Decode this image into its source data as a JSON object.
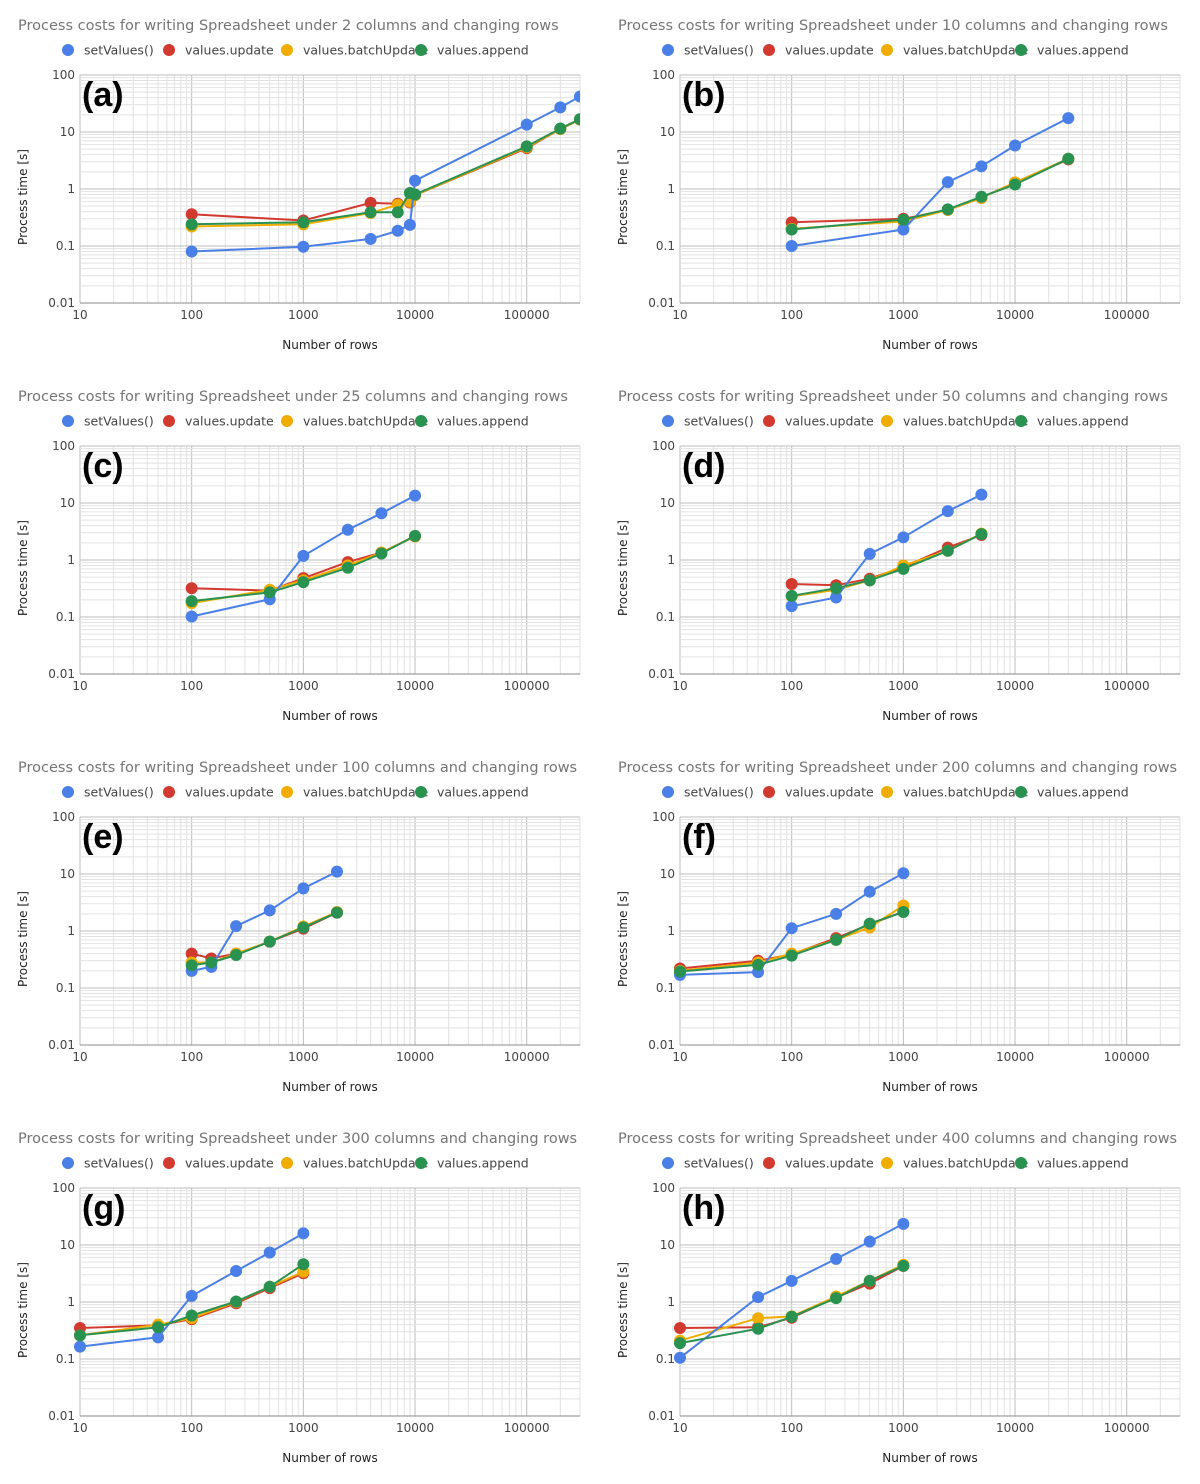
{
  "figure": {
    "series_names": [
      "setValues()",
      "values.update",
      "values.batchUpdate",
      "values.append"
    ],
    "series_colors": [
      "#4a7fe8",
      "#d33a2f",
      "#f0ad00",
      "#2a9250"
    ]
  },
  "chart_data": [
    {
      "type": "line",
      "panel_label": "(a)",
      "title": "Process costs for writing Spreadsheet under 2 columns and changing rows",
      "xlabel": "Number of rows",
      "ylabel": "Process time [s]",
      "xscale": "log",
      "yscale": "log",
      "xlim": [
        10,
        300000
      ],
      "ylim": [
        0.01,
        100
      ],
      "xticks": [
        "10",
        "100",
        "1000",
        "10000",
        "100000"
      ],
      "yticks": [
        "0.01",
        "0.1",
        "1",
        "10",
        "100"
      ],
      "grid": true,
      "legend": "top",
      "series": [
        {
          "name": "setValues()",
          "x": [
            100,
            1000,
            4000,
            7000,
            9000,
            10000,
            100000,
            200000,
            300000
          ],
          "values": [
            0.08,
            0.097,
            0.133,
            0.185,
            0.235,
            1.4,
            13.5,
            27,
            42
          ]
        },
        {
          "name": "values.update",
          "x": [
            100,
            1000,
            4000,
            7000,
            9000,
            10000,
            100000,
            200000,
            300000
          ],
          "values": [
            0.36,
            0.28,
            0.57,
            0.55,
            0.58,
            0.78,
            5.2,
            11.3,
            16.5
          ]
        },
        {
          "name": "values.batchUpdate",
          "x": [
            100,
            1000,
            4000,
            7000,
            9000,
            10000,
            100000,
            200000,
            300000
          ],
          "values": [
            0.22,
            0.24,
            0.38,
            0.53,
            0.6,
            0.78,
            5.4,
            11.3,
            16.5
          ]
        },
        {
          "name": "values.append",
          "x": [
            100,
            1000,
            4000,
            7000,
            9000,
            10000,
            100000,
            200000,
            300000
          ],
          "values": [
            0.24,
            0.26,
            0.39,
            0.39,
            0.85,
            0.8,
            5.6,
            11.5,
            16.8
          ]
        }
      ]
    },
    {
      "type": "line",
      "panel_label": "(b)",
      "title": "Process costs for writing Spreadsheet under 10 columns and changing rows",
      "xlabel": "Number of rows",
      "ylabel": "Process time [s]",
      "xscale": "log",
      "yscale": "log",
      "xlim": [
        10,
        300000
      ],
      "ylim": [
        0.01,
        100
      ],
      "xticks": [
        "10",
        "100",
        "1000",
        "10000",
        "100000"
      ],
      "yticks": [
        "0.01",
        "0.1",
        "1",
        "10",
        "100"
      ],
      "grid": true,
      "legend": "top",
      "series": [
        {
          "name": "setValues()",
          "x": [
            100,
            1000,
            2500,
            5000,
            10000,
            30000
          ],
          "values": [
            0.1,
            0.195,
            1.32,
            2.5,
            5.8,
            17.5
          ]
        },
        {
          "name": "values.update",
          "x": [
            100,
            1000,
            2500,
            5000,
            10000,
            30000
          ],
          "values": [
            0.26,
            0.3,
            0.43,
            0.7,
            1.3,
            3.3
          ]
        },
        {
          "name": "values.batchUpdate",
          "x": [
            100,
            1000,
            2500,
            5000,
            10000,
            30000
          ],
          "values": [
            0.2,
            0.27,
            0.43,
            0.7,
            1.3,
            3.4
          ]
        },
        {
          "name": "values.append",
          "x": [
            100,
            1000,
            2500,
            5000,
            10000,
            30000
          ],
          "values": [
            0.195,
            0.29,
            0.44,
            0.73,
            1.2,
            3.4
          ]
        }
      ]
    },
    {
      "type": "line",
      "panel_label": "(c)",
      "title": "Process costs for writing Spreadsheet under 25 columns and changing rows",
      "xlabel": "Number of rows",
      "ylabel": "Process time [s]",
      "xscale": "log",
      "yscale": "log",
      "xlim": [
        10,
        300000
      ],
      "ylim": [
        0.01,
        100
      ],
      "xticks": [
        "10",
        "100",
        "1000",
        "10000",
        "100000"
      ],
      "yticks": [
        "0.01",
        "0.1",
        "1",
        "10",
        "100"
      ],
      "grid": true,
      "legend": "top",
      "series": [
        {
          "name": "setValues()",
          "x": [
            100,
            500,
            1000,
            2500,
            5000,
            10000
          ],
          "values": [
            0.102,
            0.205,
            1.18,
            3.4,
            6.6,
            13.5
          ]
        },
        {
          "name": "values.update",
          "x": [
            100,
            500,
            1000,
            2500,
            5000,
            10000
          ],
          "values": [
            0.32,
            0.29,
            0.48,
            0.92,
            1.35,
            2.6
          ]
        },
        {
          "name": "values.batchUpdate",
          "x": [
            100,
            500,
            1000,
            2500,
            5000,
            10000
          ],
          "values": [
            0.175,
            0.3,
            0.44,
            0.8,
            1.35,
            2.6
          ]
        },
        {
          "name": "values.append",
          "x": [
            100,
            500,
            1000,
            2500,
            5000,
            10000
          ],
          "values": [
            0.19,
            0.27,
            0.41,
            0.73,
            1.3,
            2.65
          ]
        }
      ]
    },
    {
      "type": "line",
      "panel_label": "(d)",
      "title": "Process costs for writing Spreadsheet under 50 columns and changing rows",
      "xlabel": "Number of rows",
      "ylabel": "Process time [s]",
      "xscale": "log",
      "yscale": "log",
      "xlim": [
        10,
        300000
      ],
      "ylim": [
        0.01,
        100
      ],
      "xticks": [
        "10",
        "100",
        "1000",
        "10000",
        "100000"
      ],
      "yticks": [
        "0.01",
        "0.1",
        "1",
        "10",
        "100"
      ],
      "grid": true,
      "legend": "top",
      "series": [
        {
          "name": "setValues()",
          "x": [
            100,
            250,
            500,
            1000,
            2500,
            5000
          ],
          "values": [
            0.155,
            0.22,
            1.28,
            2.5,
            7.2,
            14
          ]
        },
        {
          "name": "values.update",
          "x": [
            100,
            250,
            500,
            1000,
            2500,
            5000
          ],
          "values": [
            0.38,
            0.36,
            0.47,
            0.75,
            1.65,
            2.75
          ]
        },
        {
          "name": "values.batchUpdate",
          "x": [
            100,
            250,
            500,
            1000,
            2500,
            5000
          ],
          "values": [
            0.23,
            0.3,
            0.44,
            0.8,
            1.45,
            2.9
          ]
        },
        {
          "name": "values.append",
          "x": [
            100,
            250,
            500,
            1000,
            2500,
            5000
          ],
          "values": [
            0.235,
            0.32,
            0.44,
            0.7,
            1.45,
            2.85
          ]
        }
      ]
    },
    {
      "type": "line",
      "panel_label": "(e)",
      "title": "Process costs for writing Spreadsheet under 100 columns and changing rows",
      "xlabel": "Number of rows",
      "ylabel": "Process time [s]",
      "xscale": "log",
      "yscale": "log",
      "xlim": [
        10,
        300000
      ],
      "ylim": [
        0.01,
        100
      ],
      "xticks": [
        "10",
        "100",
        "1000",
        "10000",
        "100000"
      ],
      "yticks": [
        "0.01",
        "0.1",
        "1",
        "10",
        "100"
      ],
      "grid": true,
      "legend": "top",
      "series": [
        {
          "name": "setValues()",
          "x": [
            100,
            150,
            250,
            500,
            1000,
            2000
          ],
          "values": [
            0.2,
            0.235,
            1.22,
            2.3,
            5.6,
            11
          ]
        },
        {
          "name": "values.update",
          "x": [
            100,
            150,
            250,
            500,
            1000,
            2000
          ],
          "values": [
            0.4,
            0.33,
            0.4,
            0.65,
            1.1,
            2.1
          ]
        },
        {
          "name": "values.batchUpdate",
          "x": [
            100,
            150,
            250,
            500,
            1000,
            2000
          ],
          "values": [
            0.28,
            0.28,
            0.4,
            0.65,
            1.2,
            2.15
          ]
        },
        {
          "name": "values.append",
          "x": [
            100,
            150,
            250,
            500,
            1000,
            2000
          ],
          "values": [
            0.25,
            0.28,
            0.38,
            0.65,
            1.15,
            2.1
          ]
        }
      ]
    },
    {
      "type": "line",
      "panel_label": "(f)",
      "title": "Process costs for writing Spreadsheet under 200 columns and changing rows",
      "xlabel": "Number of rows",
      "ylabel": "Process time [s]",
      "xscale": "log",
      "yscale": "log",
      "xlim": [
        10,
        300000
      ],
      "ylim": [
        0.01,
        100
      ],
      "xticks": [
        "10",
        "100",
        "1000",
        "10000",
        "100000"
      ],
      "yticks": [
        "0.01",
        "0.1",
        "1",
        "10",
        "100"
      ],
      "grid": true,
      "legend": "top",
      "series": [
        {
          "name": "setValues()",
          "x": [
            10,
            50,
            100,
            250,
            500,
            1000
          ],
          "values": [
            0.17,
            0.19,
            1.12,
            2.0,
            4.9,
            10.3
          ]
        },
        {
          "name": "values.update",
          "x": [
            10,
            50,
            100,
            250,
            500,
            1000
          ],
          "values": [
            0.22,
            0.3,
            0.39,
            0.75,
            1.3,
            2.2
          ]
        },
        {
          "name": "values.batchUpdate",
          "x": [
            10,
            50,
            100,
            250,
            500,
            1000
          ],
          "values": [
            0.2,
            0.28,
            0.4,
            0.7,
            1.15,
            2.8
          ]
        },
        {
          "name": "values.append",
          "x": [
            10,
            50,
            100,
            250,
            500,
            1000
          ],
          "values": [
            0.195,
            0.255,
            0.37,
            0.7,
            1.35,
            2.15
          ]
        }
      ]
    },
    {
      "type": "line",
      "panel_label": "(g)",
      "title": "Process costs for writing Spreadsheet under 300 columns and changing rows",
      "xlabel": "Number of rows",
      "ylabel": "Process time [s]",
      "xscale": "log",
      "yscale": "log",
      "xlim": [
        10,
        300000
      ],
      "ylim": [
        0.01,
        100
      ],
      "xticks": [
        "10",
        "100",
        "1000",
        "10000",
        "100000"
      ],
      "yticks": [
        "0.01",
        "0.1",
        "1",
        "10",
        "100"
      ],
      "grid": true,
      "legend": "top",
      "series": [
        {
          "name": "setValues()",
          "x": [
            10,
            50,
            100,
            250,
            500,
            1000
          ],
          "values": [
            0.165,
            0.24,
            1.28,
            3.5,
            7.4,
            16
          ]
        },
        {
          "name": "values.update",
          "x": [
            10,
            50,
            100,
            250,
            500,
            1000
          ],
          "values": [
            0.35,
            0.39,
            0.5,
            0.95,
            1.75,
            3.2
          ]
        },
        {
          "name": "values.batchUpdate",
          "x": [
            10,
            50,
            100,
            250,
            500,
            1000
          ],
          "values": [
            0.26,
            0.4,
            0.52,
            1.0,
            1.85,
            3.4
          ]
        },
        {
          "name": "values.append",
          "x": [
            10,
            50,
            100,
            250,
            500,
            1000
          ],
          "values": [
            0.26,
            0.36,
            0.58,
            1.02,
            1.85,
            4.6
          ]
        }
      ]
    },
    {
      "type": "line",
      "panel_label": "(h)",
      "title": "Process costs for writing Spreadsheet under 400 columns and changing rows",
      "xlabel": "Number of rows",
      "ylabel": "Process time [s]",
      "xscale": "log",
      "yscale": "log",
      "xlim": [
        10,
        300000
      ],
      "ylim": [
        0.01,
        100
      ],
      "xticks": [
        "10",
        "100",
        "1000",
        "10000",
        "100000"
      ],
      "yticks": [
        "0.01",
        "0.1",
        "1",
        "10",
        "100"
      ],
      "grid": true,
      "legend": "top",
      "series": [
        {
          "name": "setValues()",
          "x": [
            10,
            50,
            100,
            250,
            500,
            1000
          ],
          "values": [
            0.105,
            1.22,
            2.35,
            5.7,
            11.5,
            23.5
          ]
        },
        {
          "name": "values.update",
          "x": [
            10,
            50,
            100,
            250,
            500,
            1000
          ],
          "values": [
            0.35,
            0.36,
            0.53,
            1.2,
            2.1,
            4.3
          ]
        },
        {
          "name": "values.batchUpdate",
          "x": [
            10,
            50,
            100,
            250,
            500,
            1000
          ],
          "values": [
            0.21,
            0.52,
            0.56,
            1.25,
            2.35,
            4.5
          ]
        },
        {
          "name": "values.append",
          "x": [
            10,
            50,
            100,
            250,
            500,
            1000
          ],
          "values": [
            0.19,
            0.34,
            0.55,
            1.17,
            2.35,
            4.3
          ]
        }
      ]
    }
  ]
}
